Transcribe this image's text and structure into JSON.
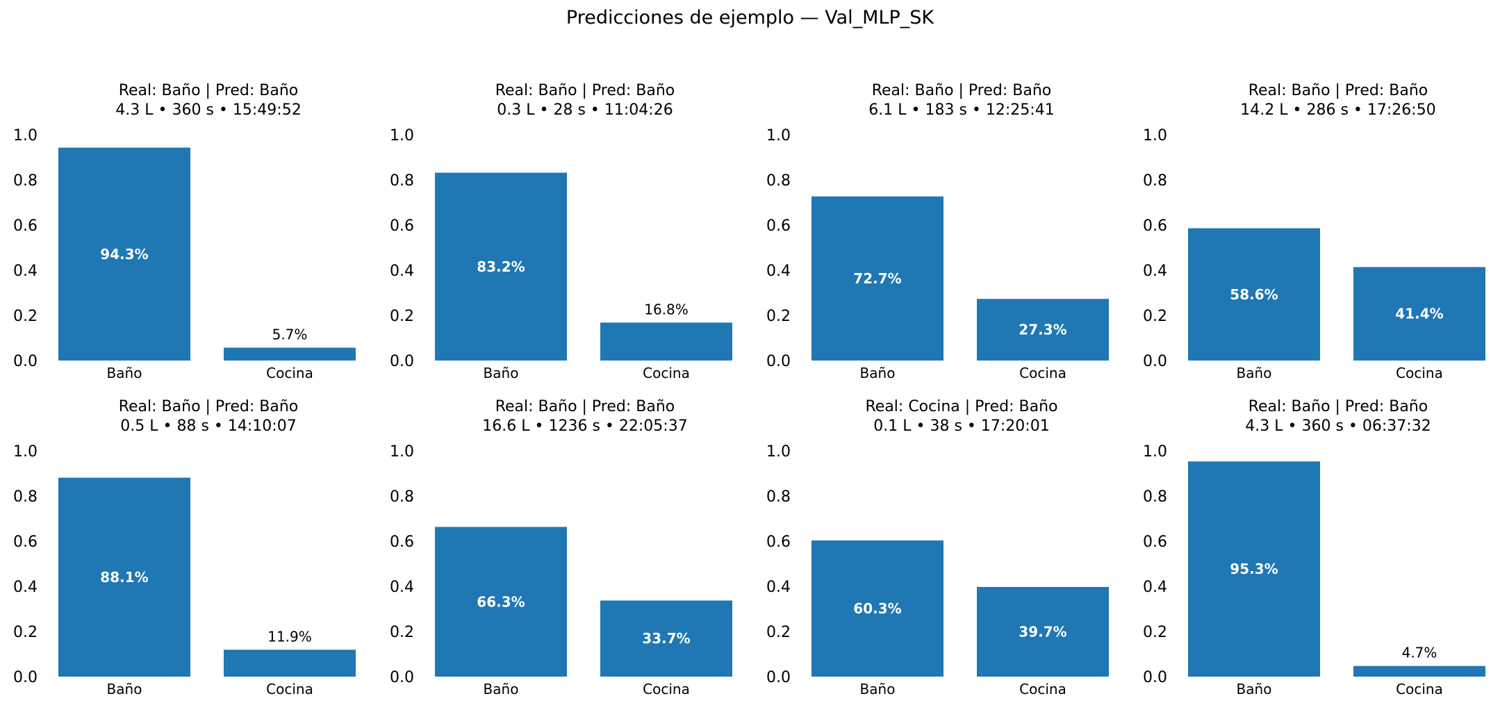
{
  "figure": {
    "title": "Predicciones de ejemplo — Val_MLP_SK"
  },
  "colors": {
    "bar": "#1f77b4",
    "inside_label": "#ffffff",
    "outside_label": "#000000"
  },
  "chart_data": [
    {
      "type": "bar",
      "title": "Real: Baño | Pred: Baño",
      "subtitle": "4.3 L • 360 s • 15:49:52",
      "categories": [
        "Baño",
        "Cocina"
      ],
      "values": [
        0.943,
        0.057
      ],
      "labels": [
        "94.3%",
        "5.7%"
      ],
      "ylim": [
        0,
        1
      ],
      "yticks": [
        "0.0",
        "0.2",
        "0.4",
        "0.6",
        "0.8",
        "1.0"
      ],
      "grid": false,
      "legend": "none"
    },
    {
      "type": "bar",
      "title": "Real: Baño | Pred: Baño",
      "subtitle": "0.3 L • 28 s • 11:04:26",
      "categories": [
        "Baño",
        "Cocina"
      ],
      "values": [
        0.832,
        0.168
      ],
      "labels": [
        "83.2%",
        "16.8%"
      ],
      "ylim": [
        0,
        1
      ],
      "yticks": [
        "0.0",
        "0.2",
        "0.4",
        "0.6",
        "0.8",
        "1.0"
      ],
      "grid": false,
      "legend": "none"
    },
    {
      "type": "bar",
      "title": "Real: Baño | Pred: Baño",
      "subtitle": "6.1 L • 183 s • 12:25:41",
      "categories": [
        "Baño",
        "Cocina"
      ],
      "values": [
        0.727,
        0.273
      ],
      "labels": [
        "72.7%",
        "27.3%"
      ],
      "ylim": [
        0,
        1
      ],
      "yticks": [
        "0.0",
        "0.2",
        "0.4",
        "0.6",
        "0.8",
        "1.0"
      ],
      "grid": false,
      "legend": "none"
    },
    {
      "type": "bar",
      "title": "Real: Baño | Pred: Baño",
      "subtitle": "14.2 L • 286 s • 17:26:50",
      "categories": [
        "Baño",
        "Cocina"
      ],
      "values": [
        0.586,
        0.414
      ],
      "labels": [
        "58.6%",
        "41.4%"
      ],
      "ylim": [
        0,
        1
      ],
      "yticks": [
        "0.0",
        "0.2",
        "0.4",
        "0.6",
        "0.8",
        "1.0"
      ],
      "grid": false,
      "legend": "none"
    },
    {
      "type": "bar",
      "title": "Real: Baño | Pred: Baño",
      "subtitle": "0.5 L • 88 s • 14:10:07",
      "categories": [
        "Baño",
        "Cocina"
      ],
      "values": [
        0.881,
        0.119
      ],
      "labels": [
        "88.1%",
        "11.9%"
      ],
      "ylim": [
        0,
        1
      ],
      "yticks": [
        "0.0",
        "0.2",
        "0.4",
        "0.6",
        "0.8",
        "1.0"
      ],
      "grid": false,
      "legend": "none"
    },
    {
      "type": "bar",
      "title": "Real: Baño | Pred: Baño",
      "subtitle": "16.6 L • 1236 s • 22:05:37",
      "categories": [
        "Baño",
        "Cocina"
      ],
      "values": [
        0.663,
        0.337
      ],
      "labels": [
        "66.3%",
        "33.7%"
      ],
      "ylim": [
        0,
        1
      ],
      "yticks": [
        "0.0",
        "0.2",
        "0.4",
        "0.6",
        "0.8",
        "1.0"
      ],
      "grid": false,
      "legend": "none"
    },
    {
      "type": "bar",
      "title": "Real: Cocina | Pred: Baño",
      "subtitle": "0.1 L • 38 s • 17:20:01",
      "categories": [
        "Baño",
        "Cocina"
      ],
      "values": [
        0.603,
        0.397
      ],
      "labels": [
        "60.3%",
        "39.7%"
      ],
      "ylim": [
        0,
        1
      ],
      "yticks": [
        "0.0",
        "0.2",
        "0.4",
        "0.6",
        "0.8",
        "1.0"
      ],
      "grid": false,
      "legend": "none"
    },
    {
      "type": "bar",
      "title": "Real: Baño | Pred: Baño",
      "subtitle": "4.3 L • 360 s • 06:37:32",
      "categories": [
        "Baño",
        "Cocina"
      ],
      "values": [
        0.953,
        0.047
      ],
      "labels": [
        "95.3%",
        "4.7%"
      ],
      "ylim": [
        0,
        1
      ],
      "yticks": [
        "0.0",
        "0.2",
        "0.4",
        "0.6",
        "0.8",
        "1.0"
      ],
      "grid": false,
      "legend": "none"
    }
  ]
}
